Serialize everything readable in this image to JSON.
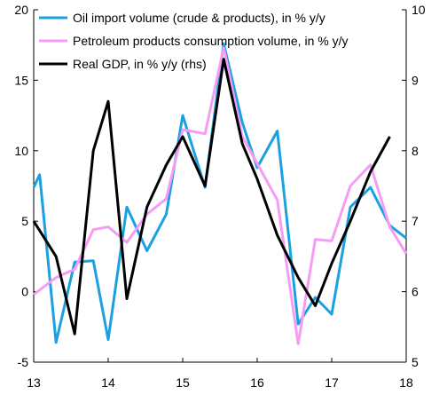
{
  "chart_data": {
    "type": "line",
    "x_ticks": [
      "13",
      "14",
      "15",
      "16",
      "17",
      "18"
    ],
    "x_range": [
      2013,
      2018
    ],
    "y_left": {
      "range": [
        -5,
        20
      ],
      "ticks": [
        "-5",
        "0",
        "5",
        "10",
        "15",
        "20"
      ]
    },
    "y_right": {
      "range": [
        5,
        10
      ],
      "ticks": [
        "5",
        "6",
        "7",
        "8",
        "9",
        "10"
      ]
    },
    "legend_position": "top-left",
    "grid": false,
    "series": [
      {
        "name": "Oil import volume (crude & products), in % y/y",
        "color": "#1ba1e2",
        "axis": "left",
        "x": [
          2013.0,
          2013.08,
          2013.3,
          2013.55,
          2013.8,
          2014.0,
          2014.25,
          2014.52,
          2014.78,
          2015.0,
          2015.3,
          2015.55,
          2015.8,
          2016.0,
          2016.27,
          2016.55,
          2016.78,
          2017.0,
          2017.25,
          2017.52,
          2017.78,
          2018.0
        ],
        "y": [
          7.4,
          8.3,
          -3.6,
          2.1,
          2.2,
          -3.4,
          6.0,
          2.9,
          5.5,
          12.5,
          7.4,
          17.6,
          12.0,
          8.8,
          11.4,
          -2.3,
          -0.4,
          -1.6,
          6.0,
          7.4,
          4.7,
          3.8
        ]
      },
      {
        "name": "Petroleum products consumption volume, in % y/y",
        "color": "#f79cf5",
        "axis": "left",
        "x": [
          2013.0,
          2013.3,
          2013.55,
          2013.8,
          2014.0,
          2014.25,
          2014.52,
          2014.78,
          2015.0,
          2015.3,
          2015.55,
          2015.8,
          2016.0,
          2016.27,
          2016.55,
          2016.78,
          2017.0,
          2017.25,
          2017.52,
          2017.78,
          2018.0
        ],
        "y": [
          -0.2,
          1.0,
          1.6,
          4.4,
          4.6,
          3.5,
          5.5,
          6.6,
          11.5,
          11.2,
          17.3,
          11.0,
          9.1,
          6.5,
          -3.7,
          3.7,
          3.6,
          7.5,
          9.0,
          4.6,
          2.7
        ]
      },
      {
        "name": "Real GDP, in % y/y (rhs)",
        "color": "#000000",
        "axis": "right",
        "x": [
          2013.0,
          2013.3,
          2013.55,
          2013.8,
          2014.0,
          2014.25,
          2014.52,
          2014.78,
          2015.0,
          2015.3,
          2015.55,
          2015.8,
          2016.0,
          2016.27,
          2016.55,
          2016.78,
          2017.0,
          2017.25,
          2017.52,
          2017.78
        ],
        "y": [
          7.0,
          6.5,
          5.4,
          8.0,
          8.7,
          5.9,
          7.2,
          7.8,
          8.2,
          7.5,
          9.3,
          8.1,
          7.6,
          6.8,
          6.2,
          5.8,
          6.4,
          7.0,
          7.7,
          8.2
        ]
      }
    ]
  }
}
